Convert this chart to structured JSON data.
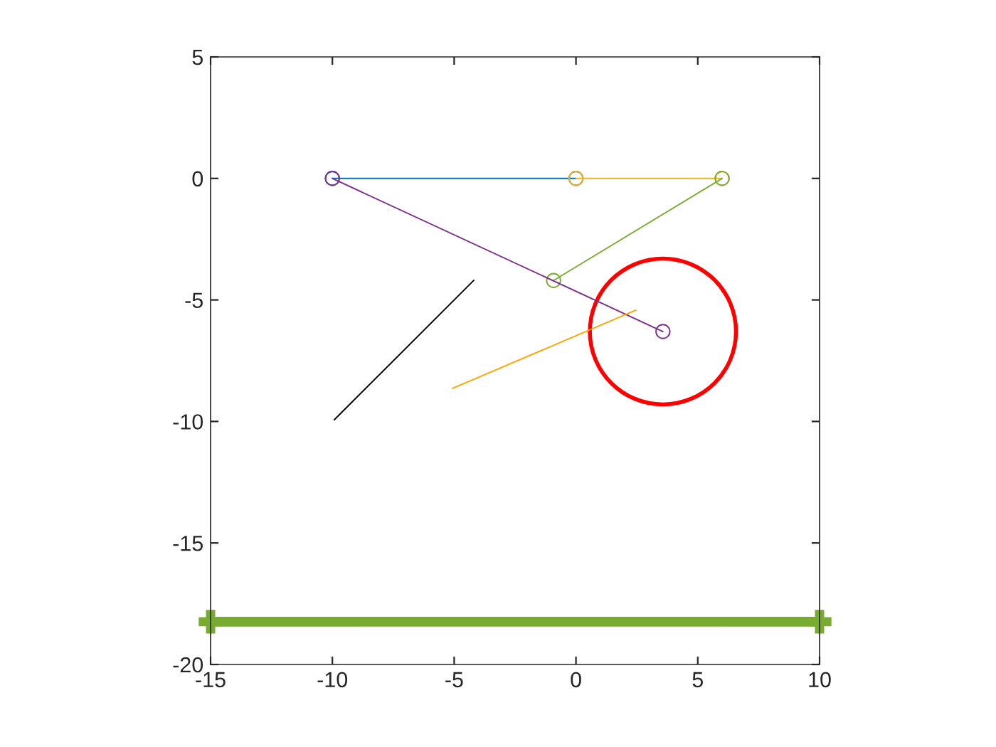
{
  "chart_data": {
    "type": "line",
    "xlim": [
      -15,
      10
    ],
    "ylim": [
      -20,
      5
    ],
    "xticks": [
      -15,
      -10,
      -5,
      0,
      5,
      10
    ],
    "yticks": [
      -20,
      -15,
      -10,
      -5,
      0,
      5
    ],
    "grid": false,
    "legend": false,
    "series": [
      {
        "color": "#0072bd",
        "x": [
          -10,
          0
        ],
        "values": [
          0,
          0
        ],
        "marker": "circle"
      },
      {
        "color": "#edb120",
        "x": [
          0,
          6
        ],
        "values": [
          0,
          0
        ],
        "marker": "circle"
      },
      {
        "color": "#77ac30",
        "x": [
          6,
          -0.92
        ],
        "values": [
          0,
          -4.2
        ],
        "marker": "circle"
      },
      {
        "color": "#7e2f8e",
        "x": [
          -10,
          3.57
        ],
        "values": [
          0,
          -6.3
        ],
        "marker": "circle"
      },
      {
        "color": "#000000",
        "x": [
          -9.92,
          -4.19
        ],
        "values": [
          -9.93,
          -4.19
        ],
        "marker": "none"
      },
      {
        "color": "#ffa500",
        "x": [
          -5.07,
          2.46
        ],
        "values": [
          -8.64,
          -5.42
        ],
        "marker": "none"
      },
      {
        "color": "#77ac30",
        "x": [
          -15,
          10
        ],
        "values": [
          -18.24,
          -18.24
        ],
        "marker": "cross"
      }
    ]
  }
}
